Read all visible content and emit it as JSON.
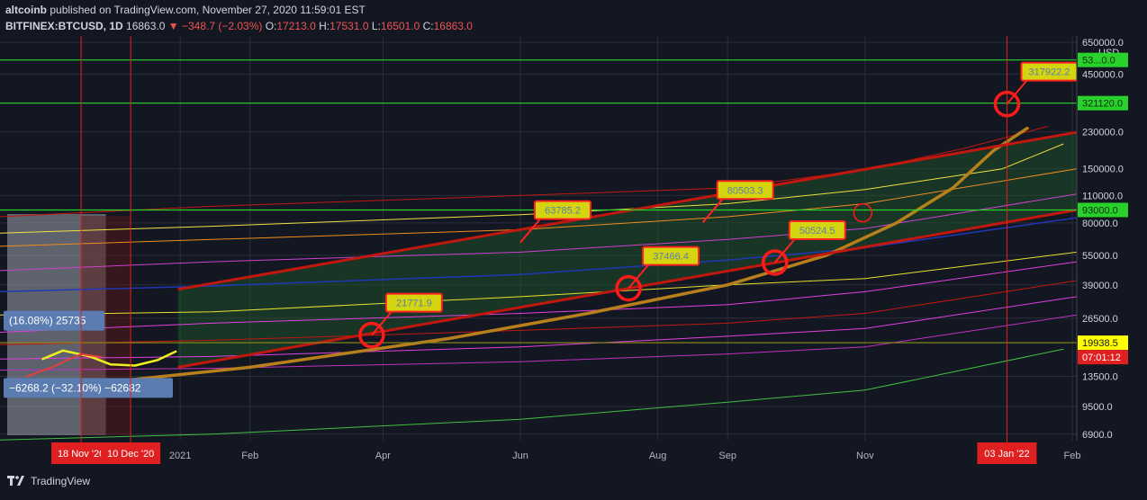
{
  "header": {
    "publisher": "altcoinb",
    "published_text": "published on TradingView.com, November 27, 2020 11:59:01 EST",
    "symbol": "BITFINEX:BTCUSD, 1D",
    "last_price": "16863.0",
    "change": "▼ −348.7 (−2.03%)",
    "o_key": "O:",
    "o_val": "17213.0",
    "h_key": "H:",
    "h_val": "17531.0",
    "l_key": "L:",
    "l_val": "16501.0",
    "c_key": "C:",
    "c_val": "16863.0"
  },
  "footer": {
    "brand": "TradingView"
  },
  "colors": {
    "background": "#131722",
    "grid": "#2a2e39",
    "channel_red": "#c0180f",
    "channel_fill": "#1e5a2a",
    "projection": "#b8801c",
    "callout_fill": "#d4d40f",
    "callout_text": "#5b7fb0",
    "green_level": "#28d22a",
    "marker_red": "#ff1a1a"
  },
  "chart_data": {
    "type": "line",
    "yscale": "log",
    "ylim": [
      6400,
      700000
    ],
    "currency_label": "USD",
    "y_ticks": [
      650000,
      450000,
      321120,
      230000,
      150000,
      110000,
      80000,
      55000,
      39000,
      26500,
      19938.5,
      13500,
      9500,
      6900
    ],
    "y_tick_labels": [
      "650000.0",
      "450000.0",
      "321120.0",
      "230000.0",
      "150000.0",
      "110000.0",
      "80000.0",
      "55000.0",
      "39000.0",
      "26500.0",
      "19938.5",
      "13500.0",
      "9500.0",
      "6900.0"
    ],
    "x_ticks": [
      {
        "label": "2021",
        "date": "2021-01-01"
      },
      {
        "label": "Feb",
        "date": "2021-02-01"
      },
      {
        "label": "Apr",
        "date": "2021-04-01"
      },
      {
        "label": "Jun",
        "date": "2021-06-01"
      },
      {
        "label": "Aug",
        "date": "2021-08-01"
      },
      {
        "label": "Sep",
        "date": "2021-09-01"
      },
      {
        "label": "Nov",
        "date": "2021-11-01"
      },
      {
        "label": "Feb",
        "date": "2022-02-01"
      }
    ],
    "x_range": [
      "2020-10-13",
      "2022-02-03"
    ],
    "highlighted_dates": [
      {
        "label": "18 Nov '20",
        "date": "2020-11-18"
      },
      {
        "label": "10 Dec '20",
        "date": "2020-12-10"
      },
      {
        "label": "03 Jan '22",
        "date": "2022-01-03"
      }
    ],
    "price_badges": [
      {
        "label": "53...0.0",
        "value": 530000,
        "bg": "#28d22a",
        "fg": "#0f2a10"
      },
      {
        "label": "321120.0",
        "value": 321120,
        "bg": "#28d22a",
        "fg": "#0f2a10"
      },
      {
        "label": "93000.0",
        "value": 93000,
        "bg": "#28d22a",
        "fg": "#0f2a10"
      },
      {
        "label": "19938.5",
        "value": 19938.5,
        "bg": "#ffff00",
        "fg": "#131722"
      },
      {
        "label": "07:01:12",
        "value": 16863,
        "bg": "#e02020",
        "fg": "#ffffff"
      }
    ],
    "horizontal_levels": [
      {
        "value": 530000,
        "color": "#28d22a"
      },
      {
        "value": 321120,
        "color": "#28d22a"
      },
      {
        "value": 93000,
        "color": "#28d22a"
      },
      {
        "value": 19938.5,
        "color": "#8c8c1a"
      }
    ],
    "channel": {
      "upper": [
        [
          "2020-12-31",
          37000
        ],
        [
          "2022-02-03",
          229000
        ]
      ],
      "lower": [
        [
          "2020-12-31",
          15000
        ],
        [
          "2022-02-03",
          93000
        ]
      ]
    },
    "callouts": [
      {
        "label": "21771.9",
        "date": "2021-03-27",
        "value": 21772
      },
      {
        "label": "63785.2",
        "date": "2021-06-01",
        "value": 63785
      },
      {
        "label": "37466.4",
        "date": "2021-07-19",
        "value": 37466
      },
      {
        "label": "80503.3",
        "date": "2021-08-21",
        "value": 80503
      },
      {
        "label": "50524.5",
        "date": "2021-09-22",
        "value": 50524
      },
      {
        "label": "317922.2",
        "date": "2022-01-03",
        "value": 317922
      }
    ],
    "circle_markers": [
      {
        "date": "2021-03-27",
        "value": 21772
      },
      {
        "date": "2021-07-19",
        "value": 37466
      },
      {
        "date": "2021-09-22",
        "value": 50524
      },
      {
        "date": "2022-01-03",
        "value": 317922
      },
      {
        "date": "2021-10-31",
        "value": 90000,
        "hollow": true
      }
    ],
    "series": [
      {
        "color": "#c0180f",
        "width": 1,
        "points": [
          [
            "2020-10-13",
            86000
          ],
          [
            "2021-01-15",
            97000
          ],
          [
            "2021-06-01",
            110000
          ],
          [
            "2021-09-01",
            120000
          ],
          [
            "2021-11-01",
            148000
          ],
          [
            "2021-12-15",
            190000
          ],
          [
            "2022-01-21",
            245000
          ]
        ]
      },
      {
        "color": "#f0e040",
        "width": 1,
        "points": [
          [
            "2020-10-13",
            71000
          ],
          [
            "2021-01-15",
            77000
          ],
          [
            "2021-06-01",
            88000
          ],
          [
            "2021-09-01",
            100000
          ],
          [
            "2021-11-01",
            118000
          ],
          [
            "2022-01-01",
            150000
          ],
          [
            "2022-01-28",
            200000
          ]
        ]
      },
      {
        "color": "#f08c20",
        "width": 1,
        "points": [
          [
            "2020-10-13",
            61000
          ],
          [
            "2021-01-15",
            66000
          ],
          [
            "2021-06-01",
            74000
          ],
          [
            "2021-09-01",
            86000
          ],
          [
            "2021-11-01",
            100000
          ],
          [
            "2022-02-03",
            150000
          ]
        ]
      },
      {
        "color": "#d040d0",
        "width": 1,
        "points": [
          [
            "2020-10-13",
            46000
          ],
          [
            "2021-01-15",
            51000
          ],
          [
            "2021-06-01",
            57000
          ],
          [
            "2021-09-01",
            66000
          ],
          [
            "2021-11-01",
            75000
          ],
          [
            "2022-02-03",
            112000
          ]
        ]
      },
      {
        "color": "#2038b8",
        "width": 1.5,
        "points": [
          [
            "2020-10-13",
            36000
          ],
          [
            "2021-01-15",
            38500
          ],
          [
            "2021-06-01",
            44000
          ],
          [
            "2021-09-01",
            52000
          ],
          [
            "2021-11-01",
            60000
          ],
          [
            "2022-02-03",
            85000
          ]
        ]
      },
      {
        "color": "#e8e030",
        "width": 1,
        "points": [
          [
            "2020-10-13",
            27500
          ],
          [
            "2021-01-15",
            28500
          ],
          [
            "2021-06-01",
            34000
          ],
          [
            "2021-09-01",
            39000
          ],
          [
            "2021-11-01",
            42000
          ],
          [
            "2022-02-03",
            57000
          ]
        ]
      },
      {
        "color": "#e040e0",
        "width": 1,
        "points": [
          [
            "2020-10-13",
            22500
          ],
          [
            "2021-01-15",
            25000
          ],
          [
            "2021-06-01",
            28000
          ],
          [
            "2021-09-01",
            31000
          ],
          [
            "2021-11-01",
            36000
          ],
          [
            "2022-02-03",
            51000
          ]
        ]
      },
      {
        "color": "#c0180f",
        "width": 1,
        "points": [
          [
            "2020-10-13",
            19500
          ],
          [
            "2021-01-15",
            20500
          ],
          [
            "2021-06-01",
            23000
          ],
          [
            "2021-09-01",
            25000
          ],
          [
            "2021-11-01",
            28000
          ],
          [
            "2022-02-03",
            41000
          ]
        ]
      },
      {
        "color": "#e040e0",
        "width": 1,
        "points": [
          [
            "2020-10-13",
            16500
          ],
          [
            "2021-01-15",
            17000
          ],
          [
            "2021-06-01",
            19000
          ],
          [
            "2021-09-01",
            21500
          ],
          [
            "2021-11-01",
            23500
          ],
          [
            "2022-02-03",
            34000
          ]
        ]
      },
      {
        "color": "#c030c0",
        "width": 1,
        "points": [
          [
            "2020-10-13",
            14500
          ],
          [
            "2021-01-15",
            14800
          ],
          [
            "2021-06-01",
            16000
          ],
          [
            "2021-09-01",
            17500
          ],
          [
            "2021-11-01",
            19000
          ],
          [
            "2022-02-03",
            27500
          ]
        ]
      },
      {
        "color": "#40c040",
        "width": 1,
        "points": [
          [
            "2020-10-13",
            6450
          ],
          [
            "2021-01-15",
            6900
          ],
          [
            "2021-06-01",
            8200
          ],
          [
            "2021-09-01",
            10000
          ],
          [
            "2021-11-01",
            11500
          ],
          [
            "2022-01-28",
            18500
          ]
        ]
      },
      {
        "color": "#b8801c",
        "width": 3.5,
        "points": [
          [
            "2020-12-05",
            12800
          ],
          [
            "2021-02-01",
            15000
          ],
          [
            "2021-05-01",
            21000
          ],
          [
            "2021-07-01",
            28000
          ],
          [
            "2021-09-01",
            39000
          ],
          [
            "2021-10-15",
            55000
          ],
          [
            "2021-11-15",
            80000
          ],
          [
            "2021-12-10",
            120000
          ],
          [
            "2021-12-28",
            185000
          ],
          [
            "2022-01-12",
            240000
          ]
        ]
      },
      {
        "color": "#f0f020",
        "width": 2.5,
        "points": [
          [
            "2020-11-01",
            16500
          ],
          [
            "2020-11-10",
            18200
          ],
          [
            "2020-11-22",
            17000
          ],
          [
            "2020-12-01",
            15500
          ],
          [
            "2020-12-12",
            15300
          ],
          [
            "2020-12-22",
            16300
          ],
          [
            "2020-12-30",
            18000
          ]
        ]
      },
      {
        "color": "#e04040",
        "width": 2,
        "points": [
          [
            "2020-10-25",
            13500
          ],
          [
            "2020-11-05",
            15000
          ],
          [
            "2020-11-18",
            17500
          ],
          [
            "2020-11-27",
            16863
          ]
        ]
      }
    ],
    "measurement_labels": [
      {
        "text": "(16.08%) 25735",
        "value": 25735
      },
      {
        "text": "−6268.2 (−32.10%) −62682",
        "value": 11800
      }
    ]
  }
}
